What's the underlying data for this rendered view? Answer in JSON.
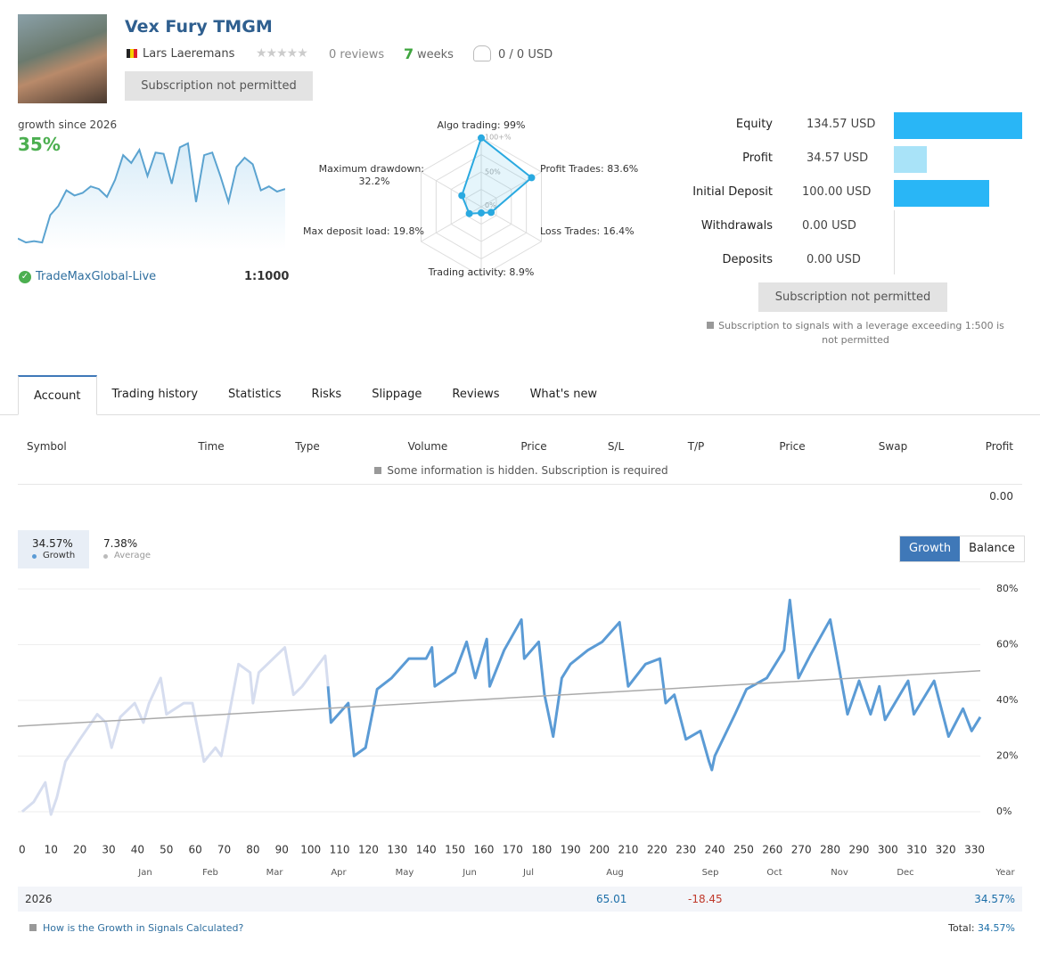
{
  "header": {
    "title": "Vex Fury TMGM",
    "author": "Lars Laeremans",
    "reviews": "0 reviews",
    "weeks_count": "7",
    "weeks_label": "weeks",
    "subscribers": "0 / 0 USD",
    "button": "Subscription not permitted"
  },
  "summary": {
    "label": "growth since 2026",
    "value": "35%",
    "broker": "TradeMaxGlobal-Live",
    "leverage": "1:1000",
    "sparkline": {
      "type": "line",
      "color": "#5ba3d0",
      "ylim": [
        0,
        80
      ],
      "values": [
        5,
        2,
        3,
        2,
        23,
        30,
        42,
        38,
        40,
        45,
        43,
        37,
        50,
        69,
        63,
        73,
        53,
        71,
        70,
        47,
        75,
        78,
        33,
        69,
        71,
        53,
        33,
        60,
        67,
        62,
        42,
        45,
        41,
        43
      ]
    }
  },
  "radar": {
    "type": "radar",
    "color": "#29a9e0",
    "rlim": [
      0,
      100
    ],
    "rings": [
      "100+%",
      "50%",
      "0%"
    ],
    "axes": [
      {
        "label": "Algo trading: 99%",
        "value": 99
      },
      {
        "label": "Profit Trades: 83.6%",
        "value": 83.6
      },
      {
        "label": "Loss Trades: 16.4%",
        "value": 16.4
      },
      {
        "label": "Trading activity: 8.9%",
        "value": 8.9
      },
      {
        "label": "Max deposit load: 19.8%",
        "value": 19.8
      },
      {
        "label": "Maximum drawdown: 32.2%",
        "value": 32.2
      }
    ]
  },
  "account": {
    "rows": [
      {
        "label": "Equity",
        "value_label": "134.57 USD",
        "value": 134.57,
        "color": "#29b6f6"
      },
      {
        "label": "Profit",
        "value_label": "34.57 USD",
        "value": 34.57,
        "color": "#a9e3f8"
      },
      {
        "label": "Initial Deposit",
        "value_label": "100.00 USD",
        "value": 100,
        "color": "#29b6f6"
      },
      {
        "label": "Withdrawals",
        "value_label": "0.00 USD",
        "value": 0,
        "color": "#29b6f6"
      },
      {
        "label": "Deposits",
        "value_label": "0.00 USD",
        "value": 0,
        "color": "#29b6f6"
      }
    ],
    "button": "Subscription not permitted",
    "note": "Subscription to signals with a leverage exceeding 1:500 is not permitted"
  },
  "tabs": [
    "Account",
    "Trading history",
    "Statistics",
    "Risks",
    "Slippage",
    "Reviews",
    "What's new"
  ],
  "active_tab": 0,
  "table": {
    "columns": [
      "Symbol",
      "Time",
      "Type",
      "Volume",
      "Price",
      "S/L",
      "T/P",
      "Price",
      "Swap",
      "Profit"
    ],
    "notice": "Some information is hidden. Subscription is required",
    "total": "0.00"
  },
  "growth_chart": {
    "type": "line",
    "legend": [
      {
        "value": "34.57%",
        "label": "Growth",
        "color": "#5b9bd5"
      },
      {
        "value": "7.38%",
        "label": "Average",
        "color": "#bbbbbb"
      }
    ],
    "buttons": [
      "Growth",
      "Balance"
    ],
    "active_button": 0,
    "xlim": [
      -1.5,
      332
    ],
    "ylim": [
      -4.5,
      83.5
    ],
    "grid": true,
    "xticks": [
      0,
      10,
      20,
      30,
      40,
      50,
      60,
      70,
      80,
      90,
      100,
      110,
      120,
      130,
      140,
      150,
      160,
      170,
      180,
      190,
      200,
      210,
      220,
      230,
      240,
      250,
      260,
      270,
      280,
      290,
      300,
      310,
      320,
      330
    ],
    "yticks": [
      {
        "value": 0,
        "label": "0%"
      },
      {
        "value": 20,
        "label": "20%"
      },
      {
        "value": 40,
        "label": "40%"
      },
      {
        "value": 60,
        "label": "60%"
      },
      {
        "value": 80,
        "label": "80%"
      }
    ],
    "months": [
      "Jan",
      "Feb",
      "Mar",
      "Apr",
      "May",
      "Jun",
      "Jul",
      "Aug",
      "Sep",
      "Oct",
      "Nov",
      "Dec"
    ],
    "period_label": "Year",
    "series": [
      {
        "color": "#d6ddef",
        "x": [
          0,
          4,
          8,
          10,
          12,
          15,
          20,
          26,
          29,
          31,
          34,
          39,
          42,
          44,
          48,
          50,
          56,
          59,
          63,
          67,
          69,
          75,
          79,
          80,
          82,
          91,
          94,
          97,
          105,
          106
        ],
        "values": [
          0,
          3.5,
          10.5,
          -1,
          5,
          18,
          26,
          35,
          32,
          23,
          34,
          39,
          32,
          39,
          48,
          35,
          39,
          39,
          18,
          23,
          20,
          53,
          50,
          39,
          50,
          59,
          42,
          45,
          56,
          45
        ]
      },
      {
        "color": "#5b9bd5",
        "x": [
          106,
          107,
          113,
          115,
          119,
          123,
          128,
          134,
          140,
          142,
          143,
          150,
          154,
          157,
          161,
          162,
          167,
          173,
          174,
          179,
          181,
          184,
          187,
          190,
          196,
          201,
          207,
          210,
          216,
          221,
          223,
          226,
          230,
          235,
          238,
          239,
          240,
          247,
          251,
          258,
          264,
          266,
          269,
          273,
          280,
          286,
          290,
          294,
          297,
          299,
          307,
          309,
          316,
          321,
          326,
          329,
          332
        ],
        "values": [
          45,
          32,
          39,
          20,
          23,
          44,
          48,
          55,
          55,
          59,
          45,
          50,
          61,
          48,
          62,
          45,
          58,
          69,
          55,
          61,
          42,
          27,
          48,
          53,
          58,
          61,
          68,
          45,
          53,
          55,
          39,
          42,
          26,
          29,
          18,
          15,
          20,
          35,
          44,
          48,
          58,
          76,
          48,
          56,
          69,
          35,
          47,
          35,
          45,
          33,
          47,
          35,
          47,
          27,
          37,
          29,
          34
        ]
      }
    ],
    "trend": {
      "color": "#aaaaaa",
      "x": [
        -1.5,
        332
      ],
      "values": [
        30.7,
        50.6
      ]
    }
  },
  "year_row": {
    "year": "2026",
    "aug": "65.01",
    "sep": "-18.45",
    "total": "34.57%"
  },
  "footer": {
    "link": "How is the Growth in Signals Calculated?",
    "total_label": "Total:",
    "total_value": "34.57%"
  }
}
